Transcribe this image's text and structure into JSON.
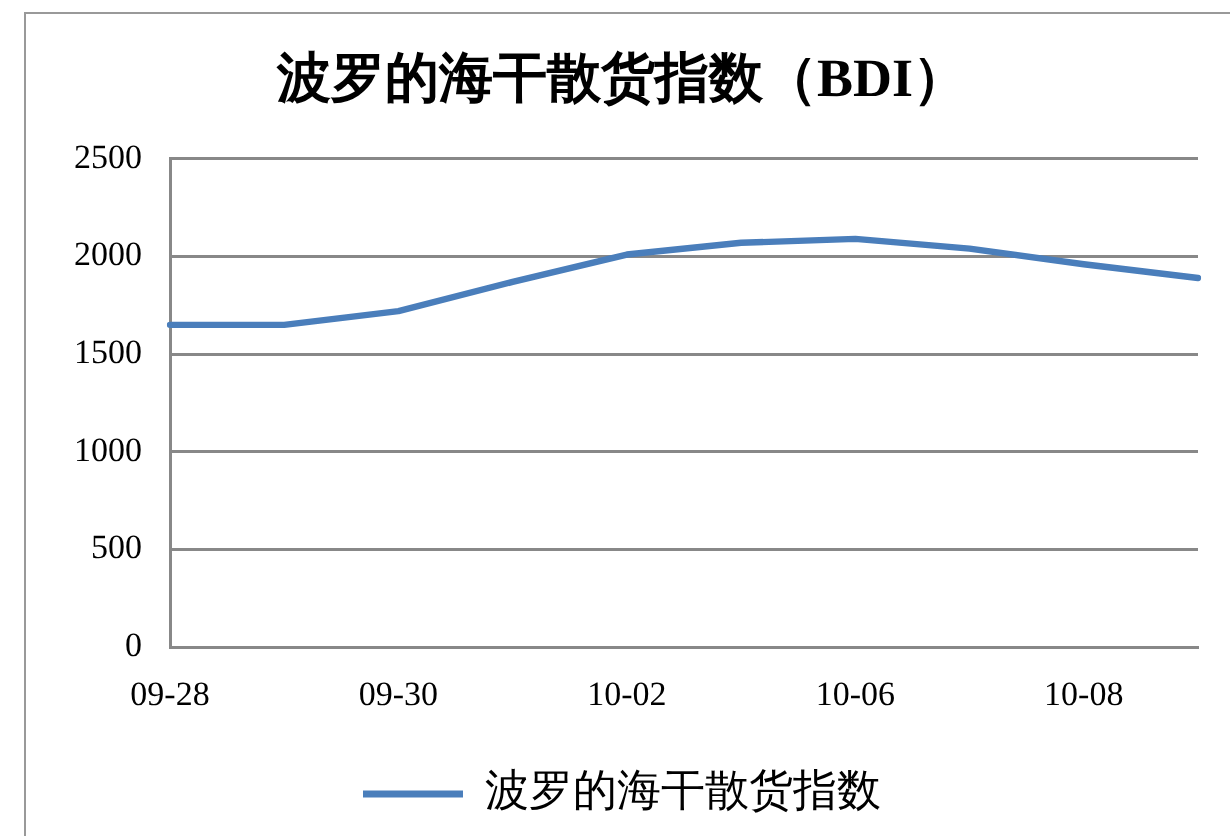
{
  "chart_data": {
    "type": "line",
    "title": "波罗的海干散货指数（BDI）",
    "categories": [
      "09-28",
      null,
      "09-30",
      null,
      "10-02",
      null,
      "10-06",
      null,
      "10-08",
      null
    ],
    "series": [
      {
        "name": "波罗的海干散货指数",
        "color": "#4a7ebb",
        "values": [
          1650,
          1650,
          1720,
          1870,
          2010,
          2070,
          2090,
          2040,
          1960,
          1890
        ]
      }
    ],
    "ylim": [
      0,
      2500
    ],
    "yticks": [
      0,
      500,
      1000,
      1500,
      2000,
      2500
    ],
    "grid": "y",
    "legend": "bottom",
    "marker": "none",
    "line_style": "solid"
  }
}
